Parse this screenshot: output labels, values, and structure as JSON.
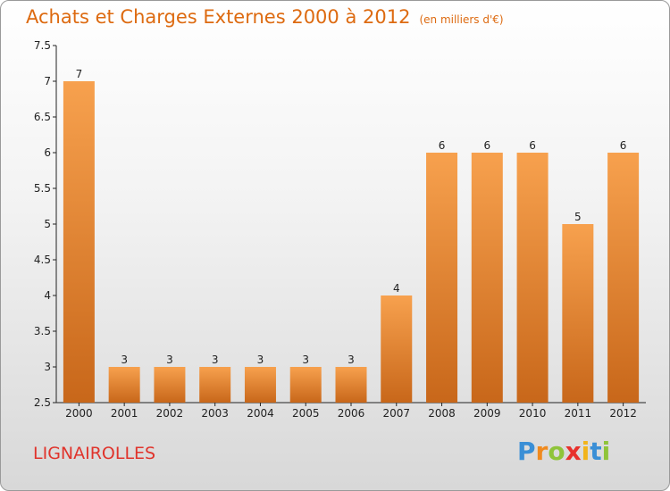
{
  "header": {
    "title": "Achats et Charges Externes 2000 à 2012",
    "unit": "(en milliers d'€)"
  },
  "footer": {
    "place": "LIGNAIROLLES",
    "logo_letters": [
      "P",
      "r",
      "o",
      "x",
      "i",
      "t",
      "i"
    ],
    "logo_colors": [
      "#3a8fd6",
      "#f08a1e",
      "#8fc43a",
      "#e8312c",
      "#f2b41b",
      "#3a8fd6",
      "#8fc43a"
    ]
  },
  "colors": {
    "bar_light": "#f7a14e",
    "bar_dark": "#c8671a",
    "title": "#dd6a10"
  },
  "chart_data": {
    "type": "bar",
    "categories": [
      "2000",
      "2001",
      "2002",
      "2003",
      "2004",
      "2005",
      "2006",
      "2007",
      "2008",
      "2009",
      "2010",
      "2011",
      "2012"
    ],
    "values": [
      7,
      3,
      3,
      3,
      3,
      3,
      3,
      4,
      6,
      6,
      6,
      5,
      6
    ],
    "title": "Achats et Charges Externes 2000 à 2012",
    "ylim": [
      2.5,
      7.5
    ],
    "yticks": [
      "2.5",
      "3",
      "3.5",
      "4",
      "4.5",
      "5",
      "5.5",
      "6",
      "6.5",
      "7",
      "7.5"
    ],
    "grid": false
  }
}
